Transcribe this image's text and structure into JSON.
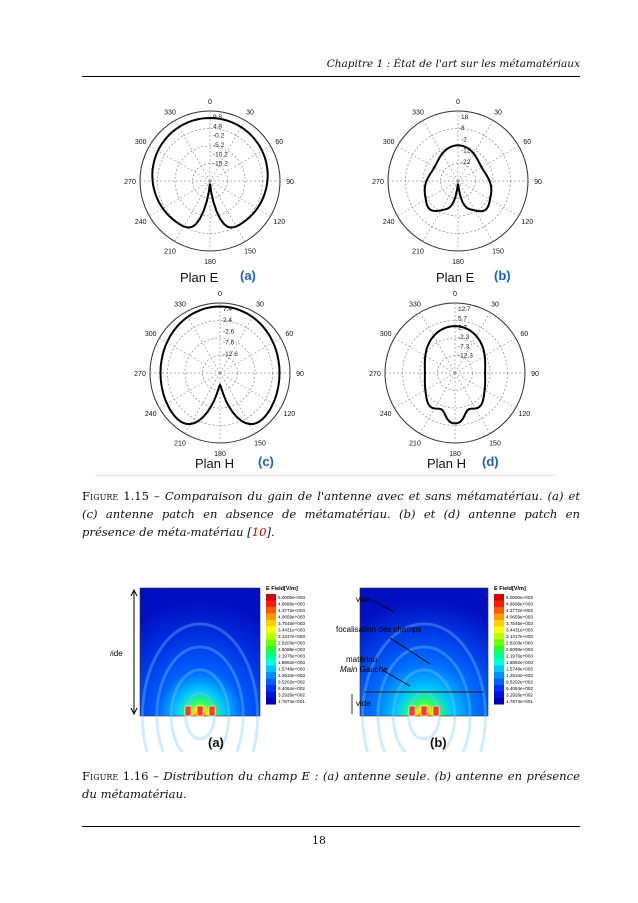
{
  "header": "Chapitre 1 : État de l'art sur les métamatériaux",
  "fig15": {
    "panels": [
      {
        "tag": "(a)",
        "plan": "Plan E",
        "rings": [
          "9.8",
          "4.8",
          "-0.2",
          "-5.2",
          "-10.2",
          "-15.2"
        ],
        "angles": [
          "0",
          "30",
          "60",
          "90",
          "120",
          "150",
          "180",
          "210",
          "240",
          "270",
          "300",
          "330"
        ]
      },
      {
        "tag": "(b)",
        "plan": "Plan E",
        "rings": [
          "18",
          "8",
          "-2",
          "-12",
          "-22"
        ],
        "angles": [
          "0",
          "30",
          "60",
          "90",
          "120",
          "150",
          "180",
          "210",
          "240",
          "270",
          "300",
          "330"
        ]
      },
      {
        "tag": "(c)",
        "plan": "Plan H",
        "rings": [
          "7.4",
          "2.4",
          "-2.6",
          "-7.6",
          "-12.6"
        ],
        "angles": [
          "0",
          "30",
          "60",
          "90",
          "120",
          "150",
          "180",
          "210",
          "240",
          "270",
          "300",
          "330"
        ]
      },
      {
        "tag": "(d)",
        "plan": "Plan H",
        "rings": [
          "12.7",
          "5.7",
          "2.7",
          "-2.3",
          "-7.3",
          "-12.3"
        ],
        "angles": [
          "0",
          "30",
          "60",
          "90",
          "120",
          "150",
          "180",
          "210",
          "240",
          "270",
          "300",
          "330"
        ]
      }
    ],
    "caption_label": "Figure 1.15 –",
    "caption_text": "Comparaison du gain de l'antenne avec et sans métamatériau. (a) et (c) antenne patch en absence de métamatériau. (b) et (d) antenne patch en présence de méta-matériau [",
    "caption_ref": "10",
    "caption_end": "]."
  },
  "fig16": {
    "legend_title": "E Field[V/m]",
    "legend_values": [
      "5.0000e+003",
      "4.6666e+003",
      "4.3772e+003",
      "4.0659e+003",
      "3.7545e+003",
      "3.4431e+003",
      "3.1317e+003",
      "2.8203e+003",
      "2.5089e+003",
      "2.1976e+003",
      "1.8862e+003",
      "1.5748e+003",
      "1.2634e+003",
      "9.5202e+002",
      "6.4064e+002",
      "3.2926e+002",
      "1.7874e+001"
    ],
    "legend_colors": [
      "#d40000",
      "#ff1a00",
      "#ff5a00",
      "#ff9a00",
      "#ffd000",
      "#f7ff00",
      "#b8ff00",
      "#70ff00",
      "#20ff30",
      "#00ff90",
      "#00ffe0",
      "#00c8ff",
      "#0090ff",
      "#0060ff",
      "#0030ff",
      "#0010e0",
      "#0000b0"
    ],
    "left": {
      "tag": "(a)",
      "label_vide": "vide"
    },
    "right": {
      "tag": "(b)",
      "label_vide_top": "vide",
      "label_focal": "focalisation des champs",
      "label_mat1": "matériau",
      "label_mat2": "Main Gauche",
      "label_vide_bottom": "vide"
    },
    "caption_label": "Figure 1.16 –",
    "caption_text": "Distribution du champ E : (a) antenne seule. (b) antenne en présence du métamatériau."
  },
  "page_number": "18"
}
